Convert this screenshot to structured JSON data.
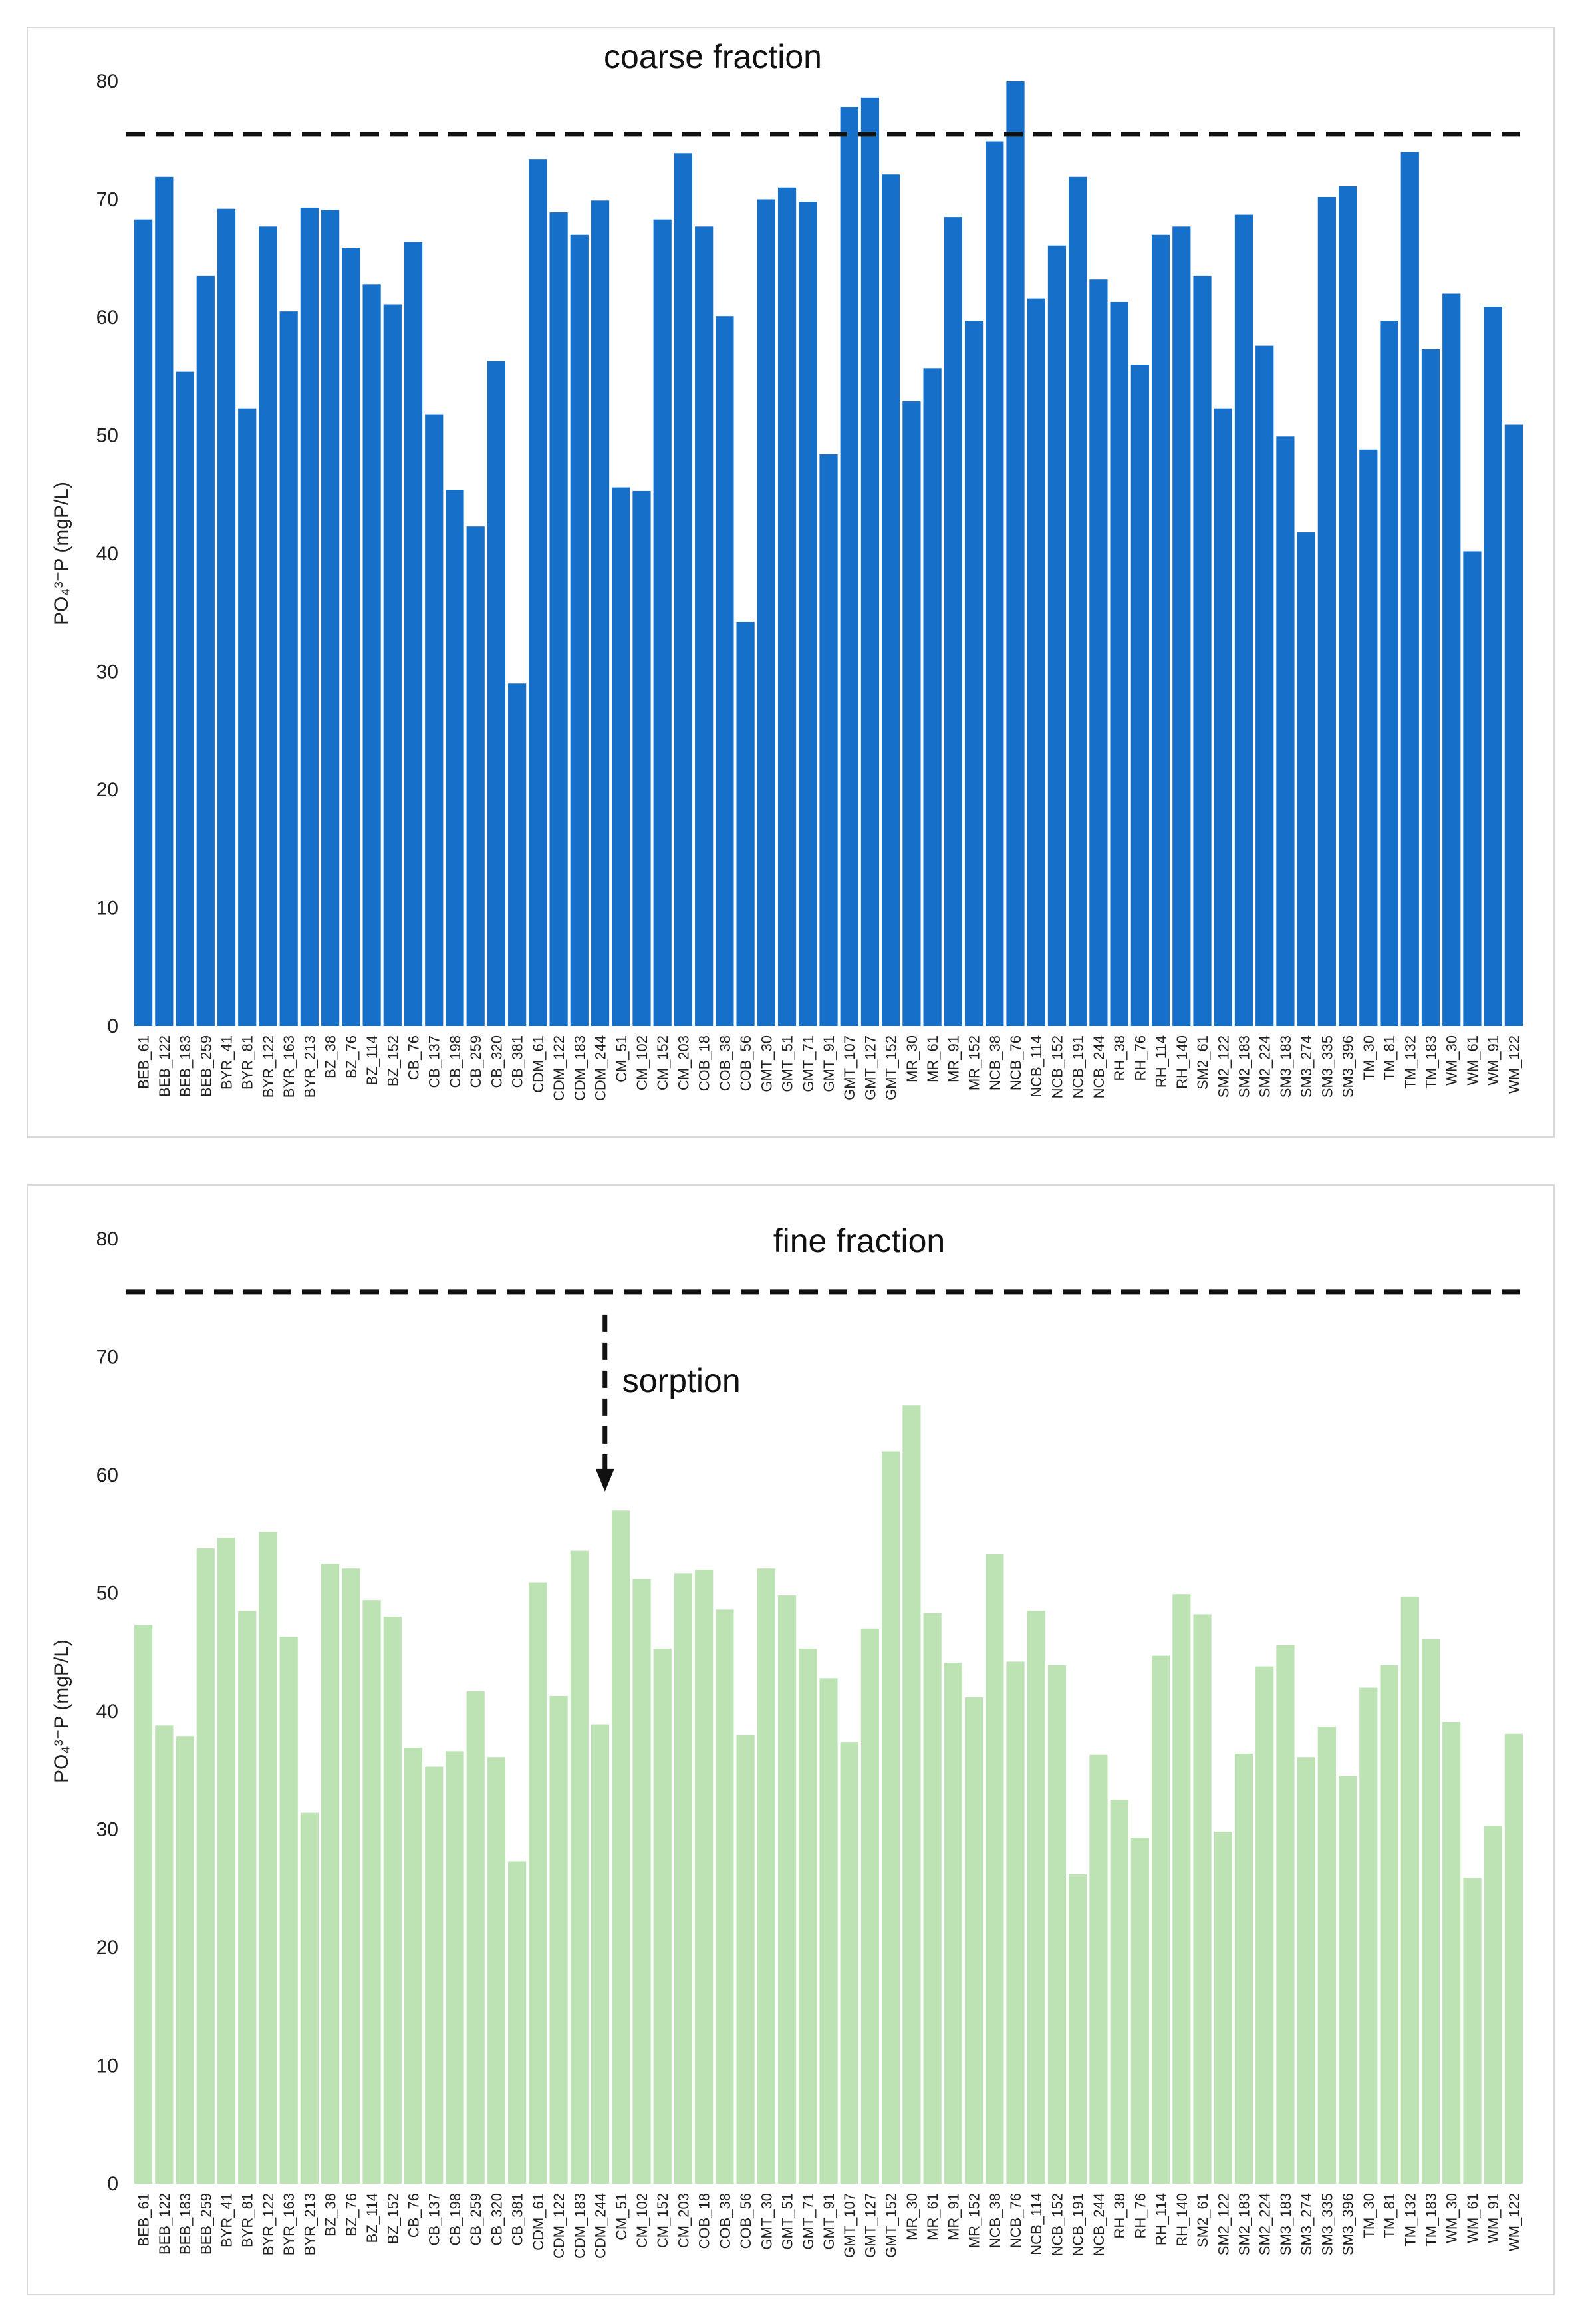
{
  "colors": {
    "coarse_bar": "#1670c9",
    "fine_bar": "#bde3b5",
    "ref_line": "#111111"
  },
  "chart_data": [
    {
      "type": "bar",
      "id": "coarse",
      "title": "",
      "annotation": "coarse fraction",
      "xlabel": "",
      "ylabel": "PO₄³⁻P (mgP/L)",
      "ylim": [
        0,
        80
      ],
      "yticks": [
        0,
        10,
        20,
        30,
        40,
        50,
        60,
        70,
        80
      ],
      "reference_line": 75.5,
      "categories": [
        "BEB_61",
        "BEB_122",
        "BEB_183",
        "BEB_259",
        "BYR_41",
        "BYR_81",
        "BYR_122",
        "BYR_163",
        "BYR_213",
        "BZ_38",
        "BZ_76",
        "BZ_114",
        "BZ_152",
        "CB_76",
        "CB_137",
        "CB_198",
        "CB_259",
        "CB_320",
        "CB_381",
        "CDM_61",
        "CDM_122",
        "CDM_183",
        "CDM_244",
        "CM_51",
        "CM_102",
        "CM_152",
        "CM_203",
        "COB_18",
        "COB_38",
        "COB_56",
        "GMT_30",
        "GMT_51",
        "GMT_71",
        "GMT_91",
        "GMT_107",
        "GMT_127",
        "GMT_152",
        "MR_30",
        "MR_61",
        "MR_91",
        "MR_152",
        "NCB_38",
        "NCB_76",
        "NCB_114",
        "NCB_152",
        "NCB_191",
        "NCB_244",
        "RH_38",
        "RH_76",
        "RH_114",
        "RH_140",
        "SM2_61",
        "SM2_122",
        "SM2_183",
        "SM2_224",
        "SM3_183",
        "SM3_274",
        "SM3_335",
        "SM3_396",
        "TM_30",
        "TM_81",
        "TM_132",
        "TM_183",
        "WM_30",
        "WM_61",
        "WM_91",
        "WM_122"
      ],
      "values": [
        68.3,
        71.9,
        55.4,
        63.5,
        69.2,
        52.3,
        67.7,
        60.5,
        69.3,
        69.1,
        65.9,
        62.8,
        61.1,
        66.4,
        51.8,
        45.4,
        42.3,
        56.3,
        29.0,
        73.4,
        68.9,
        67.0,
        69.9,
        45.6,
        45.3,
        68.3,
        73.9,
        67.7,
        60.1,
        34.2,
        70.0,
        71.0,
        69.8,
        48.4,
        77.8,
        78.6,
        72.1,
        52.9,
        55.7,
        68.5,
        59.7,
        74.9,
        80.0,
        61.6,
        66.1,
        71.9,
        63.2,
        61.3,
        56.0,
        67.0,
        67.7,
        63.5,
        52.3,
        68.7,
        57.6,
        49.9,
        41.8,
        70.2,
        71.1,
        48.8,
        59.7,
        74.0,
        57.3,
        62.0,
        40.2,
        60.9,
        50.9
      ]
    },
    {
      "type": "bar",
      "id": "fine",
      "title": "",
      "annotation": "fine fraction",
      "arrow_label": "sorption",
      "arrow_category": "CM_51",
      "xlabel": "",
      "ylabel": "PO₄³⁻P (mgP/L)",
      "ylim": [
        0,
        80
      ],
      "yticks": [
        0,
        10,
        20,
        30,
        40,
        50,
        60,
        70,
        80
      ],
      "reference_line": 75.5,
      "categories": [
        "BEB_61",
        "BEB_122",
        "BEB_183",
        "BEB_259",
        "BYR_41",
        "BYR_81",
        "BYR_122",
        "BYR_163",
        "BYR_213",
        "BZ_38",
        "BZ_76",
        "BZ_114",
        "BZ_152",
        "CB_76",
        "CB_137",
        "CB_198",
        "CB_259",
        "CB_320",
        "CB_381",
        "CDM_61",
        "CDM_122",
        "CDM_183",
        "CDM_244",
        "CM_51",
        "CM_102",
        "CM_152",
        "CM_203",
        "COB_18",
        "COB_38",
        "COB_56",
        "GMT_30",
        "GMT_51",
        "GMT_71",
        "GMT_91",
        "GMT_107",
        "GMT_127",
        "GMT_152",
        "MR_30",
        "MR_61",
        "MR_91",
        "MR_152",
        "NCB_38",
        "NCB_76",
        "NCB_114",
        "NCB_152",
        "NCB_191",
        "NCB_244",
        "RH_38",
        "RH_76",
        "RH_114",
        "RH_140",
        "SM2_61",
        "SM2_122",
        "SM2_183",
        "SM2_224",
        "SM3_183",
        "SM3_274",
        "SM3_335",
        "SM3_396",
        "TM_30",
        "TM_81",
        "TM_132",
        "TM_183",
        "WM_30",
        "WM_61",
        "WM_91",
        "WM_122"
      ],
      "values": [
        47.3,
        38.8,
        37.9,
        53.8,
        54.7,
        48.5,
        55.2,
        46.3,
        31.4,
        52.5,
        52.1,
        49.4,
        48.0,
        36.9,
        35.3,
        36.6,
        41.7,
        36.1,
        27.3,
        50.9,
        41.3,
        53.6,
        38.9,
        57.0,
        51.2,
        45.3,
        51.7,
        52.0,
        48.6,
        38.0,
        52.1,
        49.8,
        45.3,
        42.8,
        37.4,
        47.0,
        62.0,
        65.9,
        48.3,
        44.1,
        41.2,
        53.3,
        44.2,
        48.5,
        43.9,
        26.2,
        36.3,
        32.5,
        29.3,
        44.7,
        49.9,
        48.2,
        29.8,
        36.4,
        43.8,
        45.6,
        36.1,
        38.7,
        34.5,
        42.0,
        43.9,
        49.7,
        46.1,
        39.1,
        25.9,
        30.3,
        38.1
      ]
    }
  ]
}
